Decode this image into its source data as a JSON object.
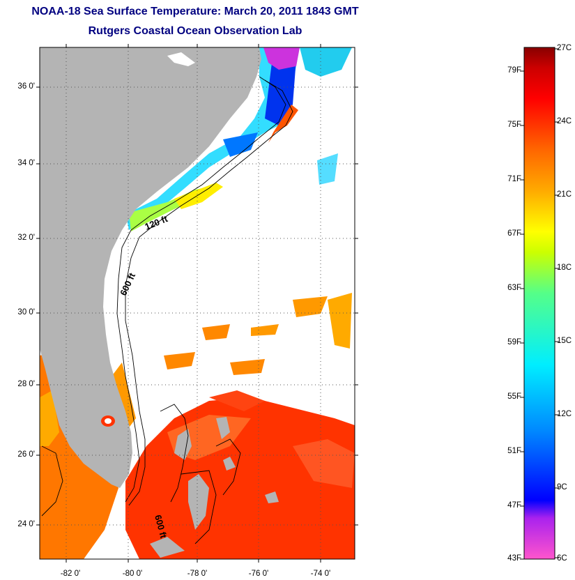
{
  "header": {
    "title": "NOAA-18 Sea Surface Temperature:  March 20, 2011 1843 GMT",
    "subtitle": "Rutgers Coastal Ocean Observation Lab"
  },
  "map": {
    "lat_labels": [
      "36 0'",
      "34 0'",
      "32 0'",
      "30 0'",
      "28 0'",
      "26 0'",
      "24 0'"
    ],
    "lon_labels": [
      "-82 0'",
      "-80 0'",
      "-78 0'",
      "-76 0'",
      "-74 0'"
    ],
    "contour_labels": {
      "c120": "120 ft",
      "c600a": "600 ft",
      "c600b": "600 ft"
    },
    "land_color": "#b4b4b4",
    "no_data_color": "#ffffff"
  },
  "colorbar": {
    "fahrenheit_labels": [
      "79F",
      "75F",
      "71F",
      "67F",
      "63F",
      "59F",
      "55F",
      "51F",
      "47F",
      "43F"
    ],
    "celsius_labels": [
      "27C",
      "24C",
      "21C",
      "18C",
      "15C",
      "12C",
      "9C",
      "6C"
    ],
    "colors": [
      "#ff55cc",
      "#aa22ee",
      "#0000ff",
      "#0088ff",
      "#00eeff",
      "#55ff88",
      "#ccff00",
      "#ffff00",
      "#ffaa00",
      "#ff6600",
      "#ff0000",
      "#cc0000",
      "#880000"
    ]
  }
}
